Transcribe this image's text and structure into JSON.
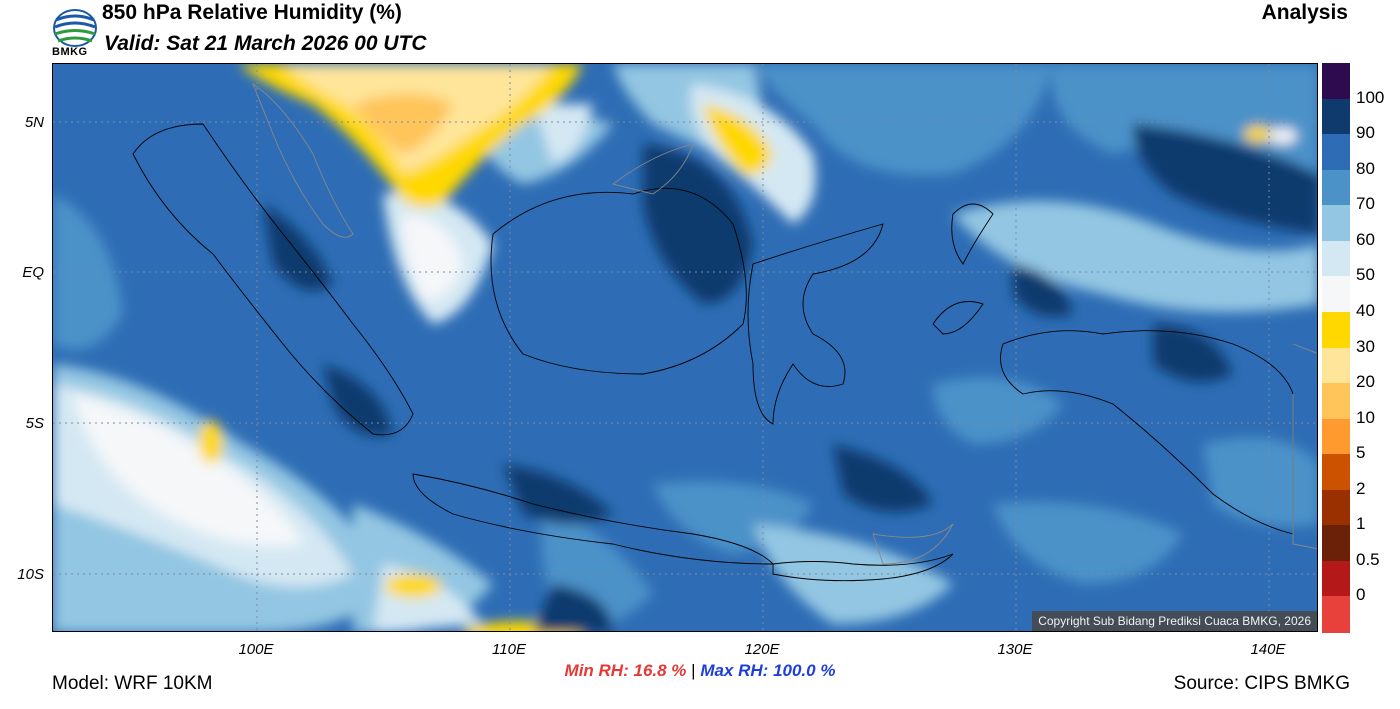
{
  "header": {
    "logo_text": "BMKG",
    "title": "850 hPa Relative Humidity (%)",
    "valid": "Valid: Sat 21 March 2026 00 UTC",
    "type": "Analysis"
  },
  "map": {
    "copyright": "Copyright Sub Bidang Prediksi Cuaca BMKG, 2026",
    "lat_labels": [
      "5N",
      "EQ",
      "5S",
      "10S"
    ],
    "lon_labels": [
      "100E",
      "110E",
      "120E",
      "130E",
      "140E"
    ]
  },
  "colorbar": {
    "labels": [
      "100",
      "90",
      "80",
      "70",
      "60",
      "50",
      "40",
      "30",
      "20",
      "10",
      "5",
      "2",
      "1",
      "0.5",
      "0"
    ],
    "colors": [
      "#2e0a4e",
      "#0f3a6e",
      "#2e6db5",
      "#4b92c9",
      "#93c6e2",
      "#d4e8f3",
      "#f5f7f9",
      "#ffd800",
      "#ffe59a",
      "#ffc45a",
      "#ff9a2e",
      "#cc5200",
      "#9a3000",
      "#6b2008",
      "#b51818",
      "#e8403a"
    ]
  },
  "stats": {
    "min_label": "Min RH:",
    "min_value": "16.8 %",
    "separator": "|",
    "max_label": "Max RH:",
    "max_value": "100.0 %"
  },
  "footer": {
    "model": "Model: WRF 10KM",
    "source": "Source: CIPS BMKG"
  }
}
